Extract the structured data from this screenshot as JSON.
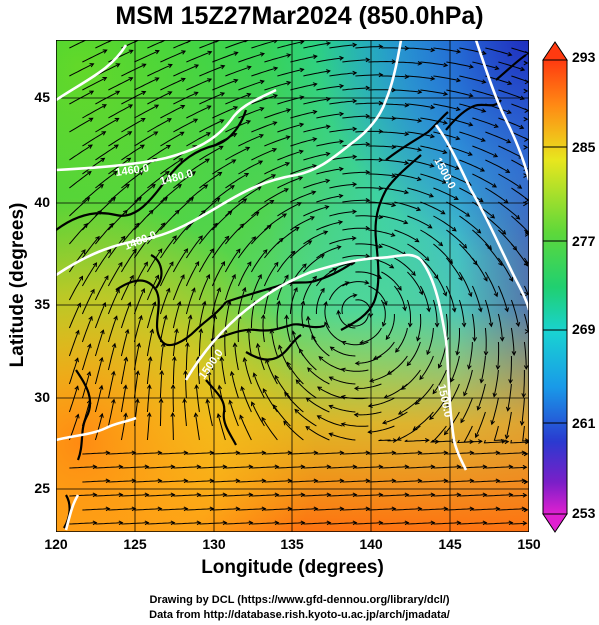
{
  "title": "MSM 15Z27Mar2024 (850.0hPa)",
  "x_axis": {
    "label": "Longitude (degrees)",
    "ticks": [
      "120",
      "125",
      "130",
      "135",
      "140",
      "145",
      "150"
    ]
  },
  "y_axis": {
    "label": "Latitude  (degrees)",
    "ticks": [
      "45",
      "40",
      "35",
      "30",
      "25"
    ]
  },
  "colorbar": {
    "ticks": [
      "293",
      "285",
      "277",
      "269",
      "261",
      "253"
    ]
  },
  "contour_labels": [
    "1440.0",
    "1460.0",
    "1480.0",
    "1500.0"
  ],
  "credits": {
    "line1": "Drawing by DCL (https://www.gfd-dennou.org/library/dcl/)",
    "line2": "Data from http://database.rish.kyoto-u.ac.jp/arch/jmadata/"
  },
  "colors": {
    "warm": "#ff7a10",
    "mid": "#22c846",
    "cool": "#19c8f0",
    "cold": "#2233cc"
  }
}
